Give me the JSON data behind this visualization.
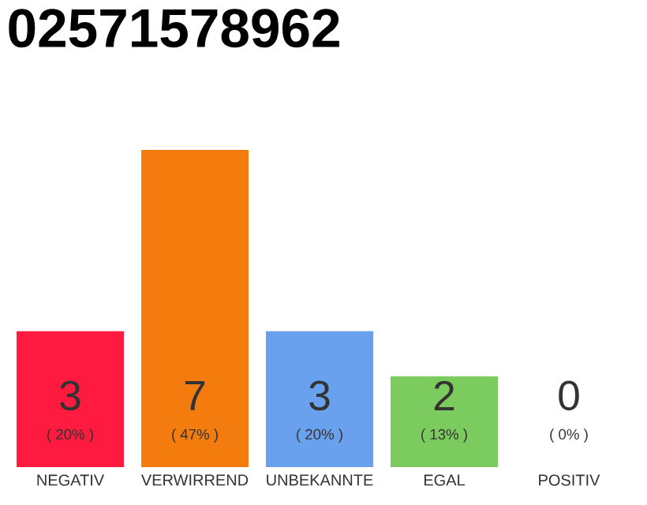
{
  "chart_data": {
    "type": "bar",
    "title": "02571578962",
    "categories": [
      "NEGATIV",
      "VERWIRREND",
      "UNBEKANNTE",
      "EGAL",
      "POSITIV"
    ],
    "values": [
      3,
      7,
      3,
      2,
      0
    ],
    "colors": [
      "#ff1a40",
      "#f47c0f",
      "#6aa1ee",
      "#7ccb5e",
      "#cccccc"
    ],
    "value_labels": [
      "3",
      "7",
      "3",
      "2",
      "0"
    ],
    "annotations": [
      "( 20% )",
      "( 47% )",
      "( 20% )",
      "( 13% )",
      "( 0% )"
    ]
  }
}
